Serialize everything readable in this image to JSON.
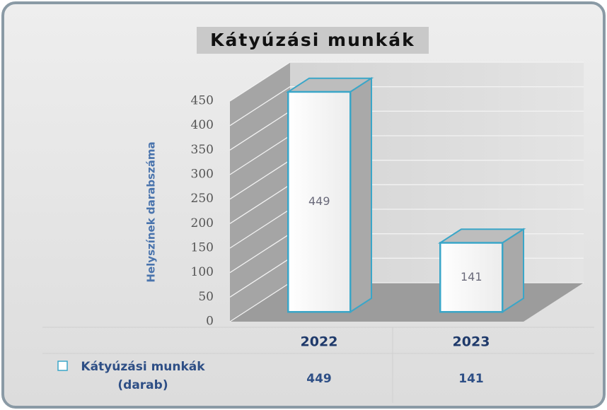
{
  "chart_data": {
    "type": "bar",
    "title": "Kátyúzási munkák",
    "y_label": "Helyszínek darabszáma",
    "categories": [
      "2022",
      "2023"
    ],
    "series": [
      {
        "name": "Kátyúzási munkák (darab)",
        "color": "#fbfbfb",
        "edge_color": "#3aa6c8",
        "values": [
          449,
          141
        ]
      }
    ],
    "ylim": [
      0,
      450
    ],
    "yticks": [
      0,
      50,
      100,
      150,
      200,
      250,
      300,
      350,
      400,
      450
    ],
    "grid": true
  }
}
